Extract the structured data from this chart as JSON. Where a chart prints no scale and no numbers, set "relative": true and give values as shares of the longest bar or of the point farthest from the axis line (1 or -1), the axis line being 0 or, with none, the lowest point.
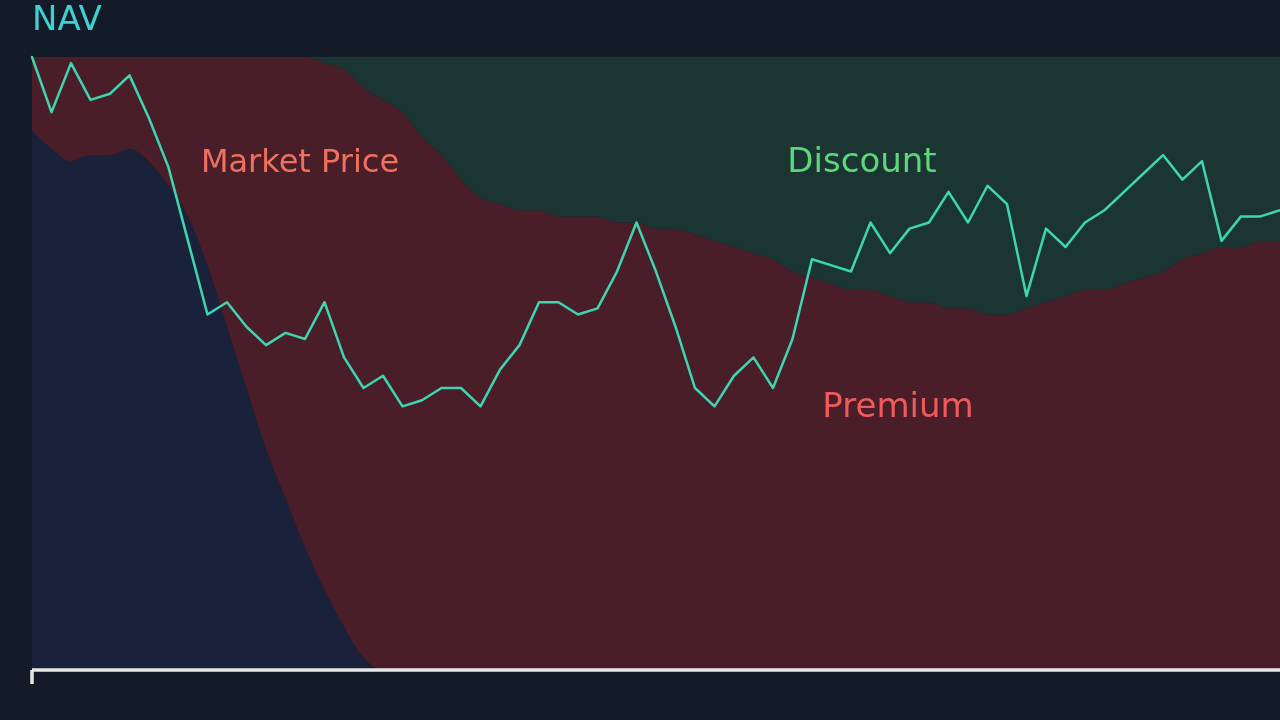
{
  "chart_data": [
    {
      "type": "area",
      "relative": true,
      "stacked": true,
      "categories": [
        null,
        null,
        null,
        null,
        null,
        null,
        null,
        null,
        null,
        null,
        null,
        null,
        null,
        null,
        null,
        null,
        null,
        null,
        null,
        null,
        null,
        null,
        null,
        null,
        null,
        null,
        null,
        null,
        null,
        null,
        null,
        null,
        null,
        null,
        null,
        null,
        null,
        null,
        null,
        null,
        null,
        null,
        null,
        null,
        null,
        null,
        null,
        null,
        null,
        null,
        null,
        null,
        null,
        null,
        null,
        null,
        null,
        null,
        null,
        null,
        null,
        null,
        null,
        null,
        null
      ],
      "annotations": [
        "Market Price"
      ],
      "series": [
        {
          "color": "#19223a",
          "values": [
            0.88,
            0.85,
            0.83,
            0.84,
            0.84,
            0.85,
            0.83,
            0.79,
            0.74,
            0.66,
            0.56,
            0.46,
            0.36,
            0.28,
            0.2,
            0.13,
            0.07,
            0.02,
            0,
            0,
            0,
            0,
            0,
            0,
            0,
            0,
            0,
            0,
            0,
            0,
            0,
            0,
            0,
            0,
            0,
            0,
            0,
            0,
            0,
            0,
            0,
            0,
            0,
            0,
            0,
            0,
            0,
            0,
            0,
            0,
            0,
            0,
            0,
            0,
            0,
            0,
            0,
            0,
            0,
            0,
            0,
            0,
            0,
            0,
            0
          ]
        },
        {
          "name": "Premium",
          "color": "#4a1e28",
          "values": [
            0.12,
            0.15,
            0.17,
            0.16,
            0.16,
            0.15,
            0.17,
            0.21,
            0.26,
            0.34,
            0.44,
            0.54,
            0.64,
            0.72,
            0.8,
            0.86,
            0.91,
            0.93,
            0.93,
            0.91,
            0.87,
            0.84,
            0.8,
            0.77,
            0.76,
            0.75,
            0.75,
            0.74,
            0.74,
            0.74,
            0.73,
            0.73,
            0.72,
            0.72,
            0.71,
            0.7,
            0.69,
            0.68,
            0.67,
            0.65,
            0.64,
            0.63,
            0.62,
            0.62,
            0.61,
            0.6,
            0.6,
            0.59,
            0.59,
            0.58,
            0.58,
            0.59,
            0.6,
            0.61,
            0.62,
            0.62,
            0.63,
            0.64,
            0.65,
            0.67,
            0.68,
            0.69,
            0.69,
            0.7,
            0.7
          ]
        },
        {
          "name": "Discount",
          "color": "#1b3533",
          "values": [
            0,
            0,
            0,
            0,
            0,
            0,
            0,
            0,
            0,
            0,
            0,
            0,
            0,
            0,
            0,
            0.01,
            0.02,
            0.05,
            0.07,
            0.09,
            0.13,
            0.16,
            0.2,
            0.23,
            0.24,
            0.25,
            0.25,
            0.26,
            0.26,
            0.26,
            0.27,
            0.27,
            0.28,
            0.28,
            0.29,
            0.3,
            0.31,
            0.32,
            0.33,
            0.35,
            0.36,
            0.37,
            0.38,
            0.38,
            0.39,
            0.4,
            0.4,
            0.41,
            0.41,
            0.42,
            0.42,
            0.41,
            0.4,
            0.39,
            0.38,
            0.38,
            0.37,
            0.36,
            0.35,
            0.33,
            0.32,
            0.31,
            0.31,
            0.3,
            0.3
          ]
        }
      ]
    },
    {
      "type": "line",
      "relative": true,
      "categories": [
        null,
        null,
        null,
        null,
        null,
        null,
        null,
        null,
        null,
        null,
        null,
        null,
        null,
        null,
        null,
        null,
        null,
        null,
        null,
        null,
        null,
        null,
        null,
        null,
        null,
        null,
        null,
        null,
        null,
        null,
        null,
        null,
        null,
        null,
        null,
        null,
        null,
        null,
        null,
        null,
        null,
        null,
        null,
        null,
        null,
        null,
        null,
        null,
        null,
        null,
        null,
        null,
        null,
        null,
        null,
        null,
        null,
        null,
        null,
        null,
        null,
        null,
        null,
        null,
        null
      ],
      "series": [
        {
          "name": "NAV",
          "color": "#3dd6b0",
          "values": [
            1,
            0.91,
            0.99,
            0.93,
            0.94,
            0.97,
            0.9,
            0.82,
            0.7,
            0.58,
            0.6,
            0.56,
            0.53,
            0.55,
            0.54,
            0.6,
            0.51,
            0.46,
            0.48,
            0.43,
            0.44,
            0.46,
            0.46,
            0.43,
            0.49,
            0.53,
            0.6,
            0.6,
            0.58,
            0.59,
            0.65,
            0.73,
            0.65,
            0.56,
            0.46,
            0.43,
            0.48,
            0.51,
            0.46,
            0.54,
            0.67,
            0.66,
            0.65,
            0.73,
            0.68,
            0.72,
            0.73,
            0.78,
            0.73,
            0.79,
            0.76,
            0.61,
            0.72,
            0.69,
            0.73,
            0.75,
            0.78,
            0.81,
            0.84,
            0.8,
            0.83,
            0.7,
            0.74,
            0.74,
            0.75
          ]
        }
      ]
    }
  ]
}
